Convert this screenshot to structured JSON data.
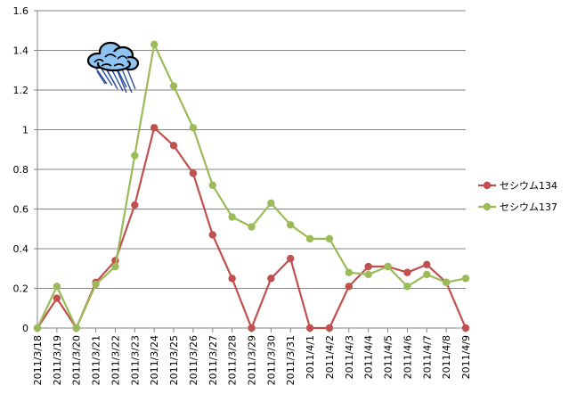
{
  "chart_data": {
    "type": "line",
    "title": "",
    "xlabel": "",
    "ylabel": "",
    "categories": [
      "2011/3/18",
      "2011/3/19",
      "2011/3/20",
      "2011/3/21",
      "2011/3/22",
      "2011/3/23",
      "2011/3/24",
      "2011/3/25",
      "2011/3/26",
      "2011/3/27",
      "2011/3/28",
      "2011/3/29",
      "2011/3/30",
      "2011/3/31",
      "2011/4/1",
      "2011/4/2",
      "2011/4/3",
      "2011/4/4",
      "2011/4/5",
      "2011/4/6",
      "2011/4/7",
      "2011/4/8",
      "2011/4/9"
    ],
    "ylim": [
      0,
      1.6
    ],
    "yticks": [
      "0",
      "0.2",
      "0.4",
      "0.6",
      "0.8",
      "1",
      "1.2",
      "1.4",
      "1.6"
    ],
    "grid": "horizontal",
    "legend_position": "right",
    "series": [
      {
        "name": "セシウム134",
        "color": "#c0504d",
        "values": [
          0,
          0.15,
          0,
          0.23,
          0.34,
          0.62,
          1.01,
          0.92,
          0.78,
          0.47,
          0.25,
          0,
          0.25,
          0.35,
          0,
          0,
          0.21,
          0.31,
          0.31,
          0.28,
          0.32,
          0.23,
          0
        ]
      },
      {
        "name": "セシウム137",
        "color": "#9bbb59",
        "values": [
          0,
          0.21,
          0,
          0.22,
          0.31,
          0.87,
          1.43,
          1.22,
          1.01,
          0.72,
          0.56,
          0.51,
          0.63,
          0.52,
          0.45,
          0.45,
          0.28,
          0.27,
          0.31,
          0.21,
          0.27,
          0.23,
          0.25
        ]
      }
    ],
    "annotation_icon": "rain-cloud-icon"
  }
}
